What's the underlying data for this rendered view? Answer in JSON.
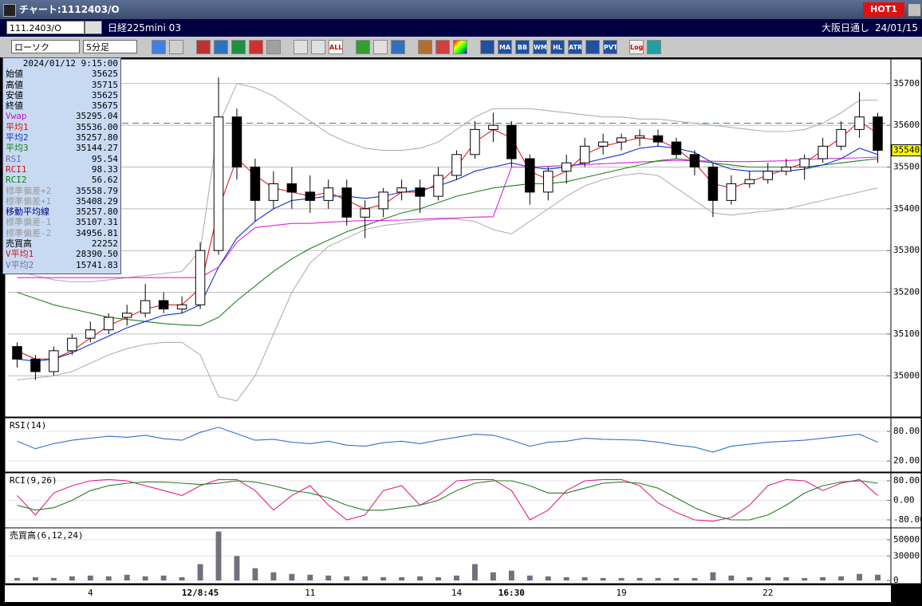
{
  "window": {
    "title": "チャート:1112403/O",
    "hot": "HOT1",
    "symbol_code": "111.2403/O",
    "symbol_name": "日経225mini 03",
    "session": "大阪日通し",
    "date": "24/01/15"
  },
  "toolbar": {
    "chart_style": "ローソク",
    "interval": "5分足",
    "buttons": [
      "ALL",
      "MA",
      "BB",
      "WMA",
      "HL",
      "ATR",
      "PVT",
      "Log"
    ]
  },
  "info_panel": {
    "timestamp": "2024/01/12 9:15:00",
    "rows": [
      [
        "始値",
        "35625"
      ],
      [
        "高値",
        "35715"
      ],
      [
        "安値",
        "35625"
      ],
      [
        "終値",
        "35675"
      ],
      [
        "Vwap",
        "35295.04"
      ],
      [
        "平均1",
        "35536.00"
      ],
      [
        "平均2",
        "35257.80"
      ],
      [
        "平均3",
        "35144.27"
      ],
      [
        "RSI",
        "95.54"
      ],
      [
        "RCI1",
        "98.33"
      ],
      [
        "RCI2",
        "56.62"
      ],
      [
        "標準偏差+2",
        "35558.79"
      ],
      [
        "標準偏差+1",
        "35408.29"
      ],
      [
        "移動平均線",
        "35257.80"
      ],
      [
        "標準偏差-1",
        "35107.31"
      ],
      [
        "標準偏差-2",
        "34956.81"
      ],
      [
        "売買高",
        "22252"
      ],
      [
        "V平均1",
        "28390.50"
      ],
      [
        "V平均2",
        "15741.83"
      ]
    ]
  },
  "chart_data": [
    {
      "type": "candlestick",
      "categories": [
        null,
        null,
        null,
        null,
        "4",
        null,
        null,
        null,
        null,
        null,
        "12/8:45",
        null,
        null,
        null,
        null,
        null,
        "11",
        null,
        null,
        null,
        null,
        null,
        null,
        null,
        "14",
        null,
        null,
        "16:30",
        null,
        null,
        null,
        null,
        null,
        "19",
        null,
        null,
        null,
        null,
        null,
        null,
        null,
        "22",
        null,
        null,
        null,
        null,
        null,
        null
      ],
      "ohlc": [
        [
          35070,
          35080,
          35020,
          35040
        ],
        [
          35040,
          35050,
          34990,
          35010
        ],
        [
          35010,
          35070,
          35000,
          35060
        ],
        [
          35060,
          35100,
          35050,
          35090
        ],
        [
          35090,
          35130,
          35080,
          35110
        ],
        [
          35110,
          35150,
          35100,
          35140
        ],
        [
          35140,
          35170,
          35120,
          35150
        ],
        [
          35150,
          35220,
          35140,
          35180
        ],
        [
          35180,
          35200,
          35150,
          35160
        ],
        [
          35160,
          35190,
          35150,
          35170
        ],
        [
          35170,
          35320,
          35160,
          35300
        ],
        [
          35300,
          35715,
          35290,
          35620
        ],
        [
          35620,
          35640,
          35470,
          35500
        ],
        [
          35500,
          35520,
          35370,
          35420
        ],
        [
          35420,
          35490,
          35400,
          35460
        ],
        [
          35460,
          35500,
          35400,
          35440
        ],
        [
          35440,
          35480,
          35390,
          35420
        ],
        [
          35420,
          35470,
          35400,
          35450
        ],
        [
          35450,
          35470,
          35360,
          35380
        ],
        [
          35380,
          35420,
          35330,
          35400
        ],
        [
          35400,
          35450,
          35380,
          35440
        ],
        [
          35440,
          35470,
          35420,
          35450
        ],
        [
          35450,
          35470,
          35390,
          35430
        ],
        [
          35430,
          35500,
          35420,
          35480
        ],
        [
          35480,
          35540,
          35470,
          35530
        ],
        [
          35530,
          35610,
          35520,
          35590
        ],
        [
          35590,
          35630,
          35560,
          35600
        ],
        [
          35600,
          35610,
          35500,
          35520
        ],
        [
          35520,
          35530,
          35410,
          35440
        ],
        [
          35440,
          35500,
          35420,
          35490
        ],
        [
          35490,
          35530,
          35460,
          35510
        ],
        [
          35510,
          35570,
          35500,
          35550
        ],
        [
          35550,
          35580,
          35530,
          35560
        ],
        [
          35560,
          35580,
          35540,
          35570
        ],
        [
          35570,
          35590,
          35550,
          35575
        ],
        [
          35575,
          35590,
          35550,
          35560
        ],
        [
          35560,
          35570,
          35520,
          35530
        ],
        [
          35530,
          35540,
          35480,
          35500
        ],
        [
          35500,
          35510,
          35380,
          35420
        ],
        [
          35420,
          35480,
          35410,
          35460
        ],
        [
          35460,
          35490,
          35450,
          35470
        ],
        [
          35470,
          35510,
          35460,
          35490
        ],
        [
          35490,
          35520,
          35480,
          35500
        ],
        [
          35500,
          35530,
          35470,
          35520
        ],
        [
          35520,
          35570,
          35510,
          35550
        ],
        [
          35550,
          35610,
          35540,
          35590
        ],
        [
          35590,
          35680,
          35570,
          35620
        ],
        [
          35620,
          35630,
          35510,
          35540
        ]
      ],
      "series": [
        {
          "color": "#b0b0b0",
          "values": [
            35250,
            35240,
            35230,
            35225,
            35225,
            35230,
            35235,
            35240,
            35245,
            35250,
            35300,
            35600,
            35700,
            35690,
            35670,
            35640,
            35610,
            35580,
            35560,
            35545,
            35540,
            35540,
            35545,
            35560,
            35590,
            35620,
            35640,
            35640,
            35640,
            35635,
            35630,
            35625,
            35620,
            35620,
            35615,
            35615,
            35610,
            35605,
            35600,
            35595,
            35590,
            35585,
            35585,
            35590,
            35605,
            35630,
            35660,
            35660
          ]
        },
        {
          "color": "#b0b0b0",
          "values": [
            34990,
            34995,
            35000,
            35010,
            35030,
            35050,
            35065,
            35075,
            35080,
            35080,
            35050,
            34950,
            34940,
            35000,
            35100,
            35200,
            35270,
            35310,
            35330,
            35350,
            35360,
            35365,
            35370,
            35375,
            35375,
            35370,
            35350,
            35340,
            35370,
            35400,
            35430,
            35455,
            35470,
            35480,
            35485,
            35480,
            35450,
            35420,
            35390,
            35385,
            35390,
            35395,
            35400,
            35410,
            35420,
            35430,
            35440,
            35450
          ]
        },
        {
          "color": "#e020e0",
          "values": [
            35235,
            35235,
            35235,
            35235,
            35235,
            35235,
            35235,
            35235,
            35235,
            35235,
            35235,
            35260,
            35320,
            35355,
            35360,
            35365,
            35365,
            35368,
            35370,
            35372,
            35372,
            35373,
            35375,
            35377,
            35378,
            35380,
            35381,
            35500,
            35500,
            35502,
            35504,
            35506,
            35508,
            35510,
            35512,
            35514,
            35516,
            35515,
            35514,
            35513,
            35513,
            35514,
            35515,
            35518,
            35520,
            35521,
            35522,
            35524
          ]
        },
        {
          "color": "#208020",
          "values": [
            35200,
            35185,
            35170,
            35160,
            35150,
            35140,
            35135,
            35130,
            35125,
            35122,
            35120,
            35140,
            35180,
            35215,
            35250,
            35280,
            35305,
            35325,
            35345,
            35360,
            35375,
            35390,
            35400,
            35415,
            35430,
            35440,
            35450,
            35455,
            35460,
            35460,
            35465,
            35475,
            35485,
            35495,
            35505,
            35515,
            35520,
            35515,
            35510,
            35505,
            35500,
            35500,
            35500,
            35500,
            35505,
            35510,
            35515,
            35520
          ]
        },
        {
          "color": "#1030d0",
          "values": [
            35040,
            35035,
            35040,
            35055,
            35075,
            35095,
            35115,
            35130,
            35145,
            35150,
            35170,
            35260,
            35330,
            35370,
            35400,
            35420,
            35425,
            35430,
            35430,
            35425,
            35430,
            35440,
            35445,
            35455,
            35470,
            35490,
            35500,
            35510,
            35500,
            35495,
            35500,
            35510,
            35520,
            35530,
            35545,
            35550,
            35545,
            35535,
            35510,
            35495,
            35490,
            35490,
            35490,
            35495,
            35505,
            35520,
            35545,
            35530
          ]
        },
        {
          "color": "#e02020",
          "values": [
            35060,
            35040,
            35040,
            35060,
            35090,
            35120,
            35140,
            35160,
            35170,
            35170,
            35210,
            35400,
            35520,
            35480,
            35450,
            35440,
            35430,
            35440,
            35420,
            35400,
            35410,
            35440,
            35440,
            35460,
            35500,
            35560,
            35590,
            35570,
            35490,
            35470,
            35490,
            35530,
            35550,
            35560,
            35570,
            35565,
            35545,
            35510,
            35460,
            35450,
            35465,
            35480,
            35495,
            35510,
            35540,
            35570,
            35610,
            35580
          ]
        }
      ],
      "ylim": [
        34905,
        35755
      ],
      "yticks": [
        35000,
        35100,
        35200,
        35300,
        35400,
        35500,
        35600,
        35700
      ],
      "reference_line": 35605,
      "last_price": 35540
    },
    {
      "type": "line",
      "title": "RSI(14)",
      "series": [
        {
          "color": "#3070d0",
          "values": [
            60,
            45,
            55,
            62,
            66,
            70,
            68,
            72,
            65,
            62,
            78,
            88,
            75,
            62,
            64,
            58,
            55,
            60,
            52,
            50,
            57,
            60,
            55,
            62,
            68,
            74,
            72,
            62,
            50,
            58,
            60,
            66,
            64,
            63,
            62,
            58,
            52,
            48,
            38,
            50,
            54,
            58,
            60,
            62,
            66,
            70,
            74,
            58
          ]
        }
      ],
      "ylim": [
        1,
        104
      ],
      "yticks": [
        {
          "value": 80,
          "label": "80.00"
        },
        {
          "value": 20,
          "label": "20.00"
        }
      ]
    },
    {
      "type": "line",
      "title": "RCI(9,26)",
      "series": [
        {
          "color": "#e02080",
          "values": [
            20,
            -60,
            30,
            60,
            80,
            85,
            80,
            60,
            40,
            20,
            60,
            85,
            85,
            40,
            -40,
            20,
            60,
            -20,
            -80,
            -60,
            40,
            60,
            -20,
            20,
            80,
            85,
            85,
            40,
            -80,
            -40,
            40,
            80,
            85,
            85,
            60,
            -10,
            -50,
            -80,
            -85,
            -70,
            -20,
            60,
            85,
            80,
            40,
            70,
            85,
            20
          ]
        },
        {
          "color": "#208020",
          "values": [
            -20,
            -40,
            -30,
            0,
            40,
            60,
            70,
            75,
            75,
            70,
            65,
            70,
            80,
            75,
            60,
            40,
            30,
            10,
            -20,
            -40,
            -40,
            -30,
            -20,
            0,
            40,
            70,
            80,
            80,
            60,
            30,
            30,
            50,
            70,
            75,
            70,
            50,
            10,
            -30,
            -60,
            -80,
            -80,
            -60,
            -20,
            30,
            60,
            75,
            80,
            70
          ]
        }
      ],
      "ylim": [
        -106,
        106
      ],
      "yticks": [
        {
          "value": 80,
          "label": "80.00"
        },
        {
          "value": 0,
          "label": "0.00"
        },
        {
          "value": -80,
          "label": "-80.00"
        }
      ]
    },
    {
      "type": "bar",
      "title": "売買高(6,12,24)",
      "color": "#707080",
      "values": [
        3000,
        4000,
        3000,
        5000,
        6000,
        5000,
        7000,
        5000,
        6000,
        4000,
        20000,
        60000,
        30000,
        15000,
        10000,
        8000,
        7000,
        6000,
        5000,
        5000,
        4000,
        4000,
        5000,
        4000,
        6000,
        20000,
        10000,
        12000,
        6000,
        5000,
        4000,
        4000,
        3000,
        3000,
        3000,
        3000,
        3000,
        3000,
        10000,
        6000,
        4000,
        4000,
        4000,
        3000,
        4000,
        5000,
        8000,
        7000
      ],
      "ylim": [
        -2000,
        62500
      ],
      "yticks": [
        50000,
        30000,
        0
      ]
    }
  ]
}
